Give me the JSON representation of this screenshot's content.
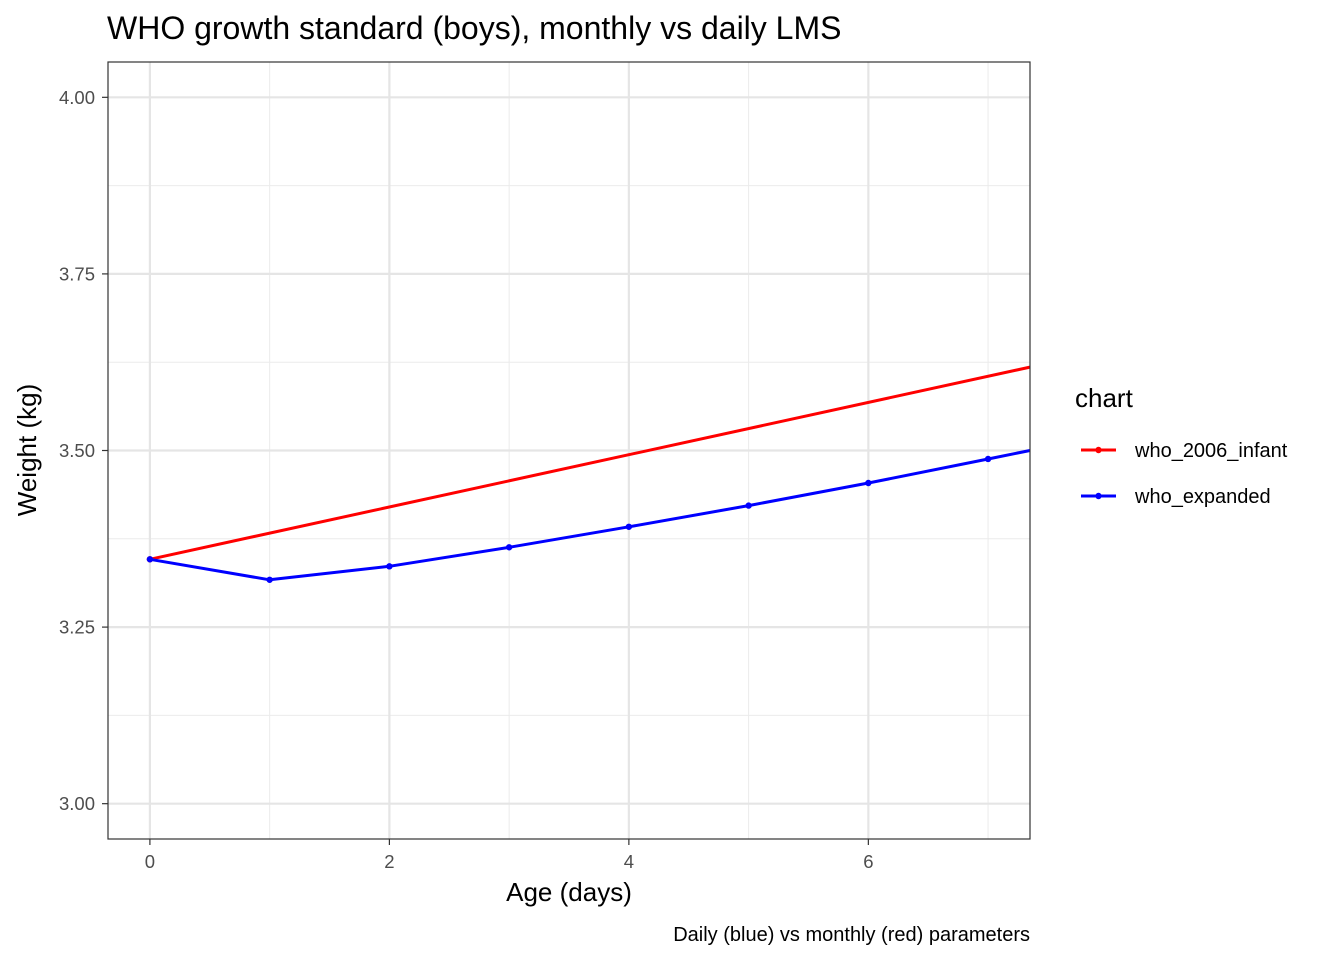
{
  "chart_data": {
    "type": "line",
    "title": "WHO growth standard (boys), monthly vs daily LMS",
    "xlabel": "Age (days)",
    "ylabel": "Weight (kg)",
    "caption": "Daily (blue) vs monthly (red) parameters",
    "xlim": [
      -0.35,
      7.35
    ],
    "ylim": [
      2.95,
      4.05
    ],
    "x_ticks": [
      0,
      2,
      4,
      6
    ],
    "x_tick_labels": [
      "0",
      "2",
      "4",
      "6"
    ],
    "x_minor_ticks": [
      1,
      3,
      5,
      7
    ],
    "y_ticks": [
      3.0,
      3.25,
      3.5,
      3.75,
      4.0
    ],
    "y_tick_labels": [
      "3.00",
      "3.25",
      "3.50",
      "3.75",
      "4.00"
    ],
    "y_minor_ticks": [
      3.125,
      3.375,
      3.625,
      3.875
    ],
    "grid": true,
    "legend": {
      "title": "chart",
      "placement": "right",
      "entries": [
        "who_2006_infant",
        "who_expanded"
      ]
    },
    "series": [
      {
        "name": "who_2006_infant",
        "color": "#ff0000",
        "x": [
          0,
          7.35
        ],
        "y": [
          3.346,
          3.618
        ],
        "points": [
          {
            "x": 0,
            "y": 3.346
          }
        ]
      },
      {
        "name": "who_expanded",
        "color": "#0000ff",
        "x": [
          0,
          1,
          2,
          3,
          4,
          5,
          6,
          7,
          7.35
        ],
        "y": [
          3.346,
          3.317,
          3.336,
          3.363,
          3.392,
          3.422,
          3.454,
          3.488,
          3.5
        ],
        "points": [
          {
            "x": 0,
            "y": 3.346
          },
          {
            "x": 1,
            "y": 3.317
          },
          {
            "x": 2,
            "y": 3.336
          },
          {
            "x": 3,
            "y": 3.363
          },
          {
            "x": 4,
            "y": 3.392
          },
          {
            "x": 5,
            "y": 3.422
          },
          {
            "x": 6,
            "y": 3.454
          },
          {
            "x": 7,
            "y": 3.488
          }
        ]
      }
    ]
  }
}
